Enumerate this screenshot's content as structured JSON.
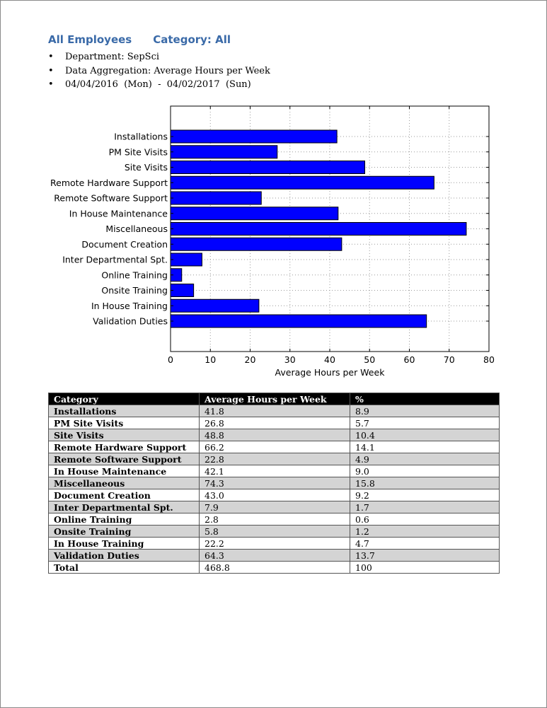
{
  "report": {
    "title": "All Employees",
    "category_label": "Category: All",
    "bullets": [
      "Department: SepSci",
      "Data Aggregation: Average Hours per Week",
      "04/04/2016  (Mon)  -  04/02/2017  (Sun)"
    ]
  },
  "chart_data": {
    "type": "bar",
    "orientation": "horizontal",
    "categories": [
      "Installations",
      "PM Site Visits",
      "Site Visits",
      "Remote Hardware Support",
      "Remote Software Support",
      "In House Maintenance",
      "Miscellaneous",
      "Document Creation",
      "Inter Departmental Spt.",
      "Online Training",
      "Onsite Training",
      "In House Training",
      "Validation Duties"
    ],
    "values": [
      41.8,
      26.8,
      48.8,
      66.2,
      22.8,
      42.1,
      74.3,
      43.0,
      7.9,
      2.8,
      5.8,
      22.2,
      64.3
    ],
    "xlabel": "Average Hours per Week",
    "xlim": [
      0,
      80
    ],
    "xticks": [
      "0",
      "10",
      "20",
      "30",
      "40",
      "50",
      "60",
      "70",
      "80"
    ],
    "grid": true,
    "bar_color": "#0000ff"
  },
  "table": {
    "headers": [
      "Category",
      "Average Hours per Week",
      "%"
    ],
    "rows": [
      [
        "Installations",
        "41.8",
        "8.9"
      ],
      [
        "PM Site Visits",
        "26.8",
        "5.7"
      ],
      [
        "Site Visits",
        "48.8",
        "10.4"
      ],
      [
        "Remote Hardware Support",
        "66.2",
        "14.1"
      ],
      [
        "Remote Software Support",
        "22.8",
        "4.9"
      ],
      [
        "In House Maintenance",
        "42.1",
        "9.0"
      ],
      [
        "Miscellaneous",
        "74.3",
        "15.8"
      ],
      [
        "Document Creation",
        "43.0",
        "9.2"
      ],
      [
        "Inter Departmental Spt.",
        "7.9",
        "1.7"
      ],
      [
        "Online Training",
        "2.8",
        "0.6"
      ],
      [
        "Onsite Training",
        "5.8",
        "1.2"
      ],
      [
        "In House Training",
        "22.2",
        "4.7"
      ],
      [
        "Validation Duties",
        "64.3",
        "13.7"
      ],
      [
        "Total",
        "468.8",
        "100"
      ]
    ]
  }
}
